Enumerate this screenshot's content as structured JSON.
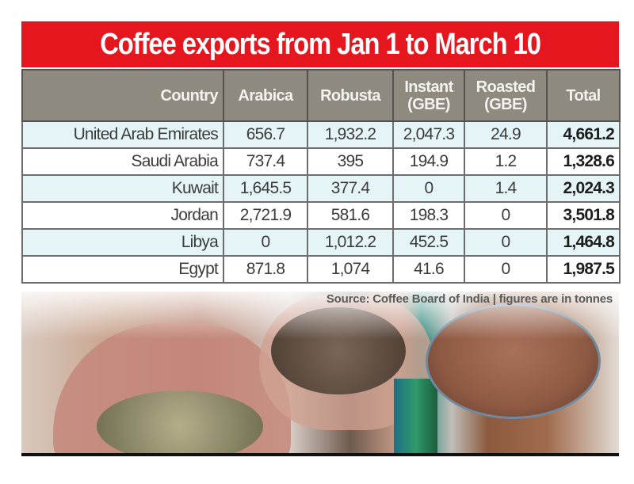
{
  "title": "Coffee exports from Jan 1 to March 10",
  "table": {
    "headers": [
      "Country",
      "Arabica",
      "Robusta",
      "Instant (GBE)",
      "Roasted (GBE)",
      "Total"
    ],
    "header_lines": {
      "instant": [
        "Instant",
        "(GBE)"
      ],
      "roasted": [
        "Roasted",
        "(GBE)"
      ]
    },
    "rows": [
      {
        "country": "United Arab Emirates",
        "arabica": "656.7",
        "robusta": "1,932.2",
        "instant": "2,047.3",
        "roasted": "24.9",
        "total": "4,661.2"
      },
      {
        "country": "Saudi Arabia",
        "arabica": "737.4",
        "robusta": "395",
        "instant": "194.9",
        "roasted": "1.2",
        "total": "1,328.6"
      },
      {
        "country": "Kuwait",
        "arabica": "1,645.5",
        "robusta": "377.4",
        "instant": "0",
        "roasted": "1.4",
        "total": "2,024.3"
      },
      {
        "country": "Jordan",
        "arabica": "2,721.9",
        "robusta": "581.6",
        "instant": "198.3",
        "roasted": "0",
        "total": "3,501.8"
      },
      {
        "country": "Libya",
        "arabica": "0",
        "robusta": "1,012.2",
        "instant": "452.5",
        "roasted": "0",
        "total": "1,464.8"
      },
      {
        "country": "Egypt",
        "arabica": "871.8",
        "robusta": "1,074",
        "instant": "41.6",
        "roasted": "0",
        "total": "1,987.5"
      }
    ]
  },
  "source": "Source: Coffee Board of India | figures are in tonnes",
  "colors": {
    "title_bg": "#e5161e",
    "header_bg": "#8f8a80",
    "row_alt_bg": "#e5f5f7",
    "row_bg": "#ffffff"
  },
  "chart_data": {
    "type": "table",
    "title": "Coffee exports from Jan 1 to March 10",
    "unit": "tonnes",
    "source": "Coffee Board of India",
    "columns": [
      "Country",
      "Arabica",
      "Robusta",
      "Instant (GBE)",
      "Roasted (GBE)",
      "Total"
    ],
    "categories": [
      "United Arab Emirates",
      "Saudi Arabia",
      "Kuwait",
      "Jordan",
      "Libya",
      "Egypt"
    ],
    "series": [
      {
        "name": "Arabica",
        "values": [
          656.7,
          737.4,
          1645.5,
          2721.9,
          0,
          871.8
        ]
      },
      {
        "name": "Robusta",
        "values": [
          1932.2,
          395,
          377.4,
          581.6,
          1012.2,
          1074
        ]
      },
      {
        "name": "Instant (GBE)",
        "values": [
          2047.3,
          194.9,
          0,
          198.3,
          452.5,
          41.6
        ]
      },
      {
        "name": "Roasted (GBE)",
        "values": [
          24.9,
          1.2,
          1.4,
          0,
          0,
          0
        ]
      },
      {
        "name": "Total",
        "values": [
          4661.2,
          1328.6,
          2024.3,
          3501.8,
          1464.8,
          1987.5
        ]
      }
    ]
  }
}
